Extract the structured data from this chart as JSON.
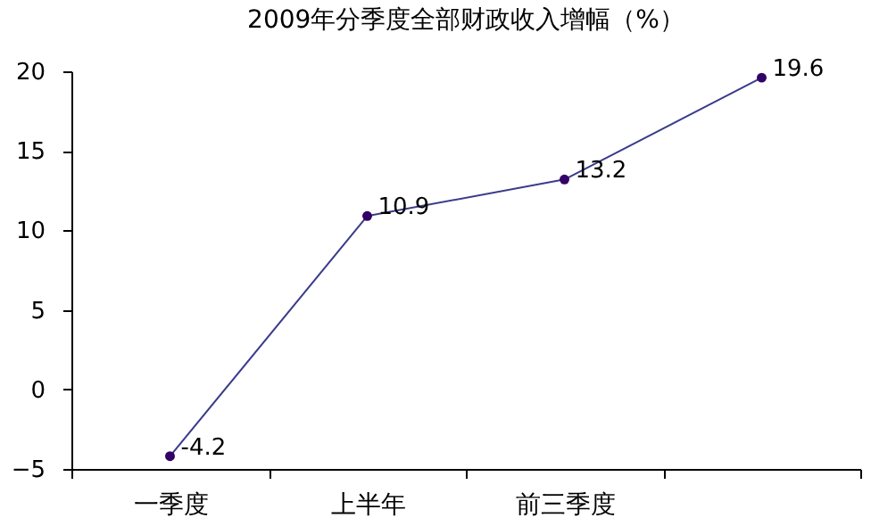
{
  "chart_data": {
    "type": "line",
    "title": "2009年分季度全部财政收入增幅（%）",
    "categories": [
      "一季度",
      "上半年",
      "前三季度",
      null
    ],
    "series": [
      {
        "color": "#3b3b8c",
        "values": [
          -4.2,
          10.9,
          13.2,
          19.6
        ]
      }
    ],
    "marker": "circle",
    "data_labels": true,
    "ylim": [
      -5,
      20
    ],
    "yticks": [
      -5,
      0,
      5,
      10,
      15,
      20
    ],
    "grid": false
  }
}
